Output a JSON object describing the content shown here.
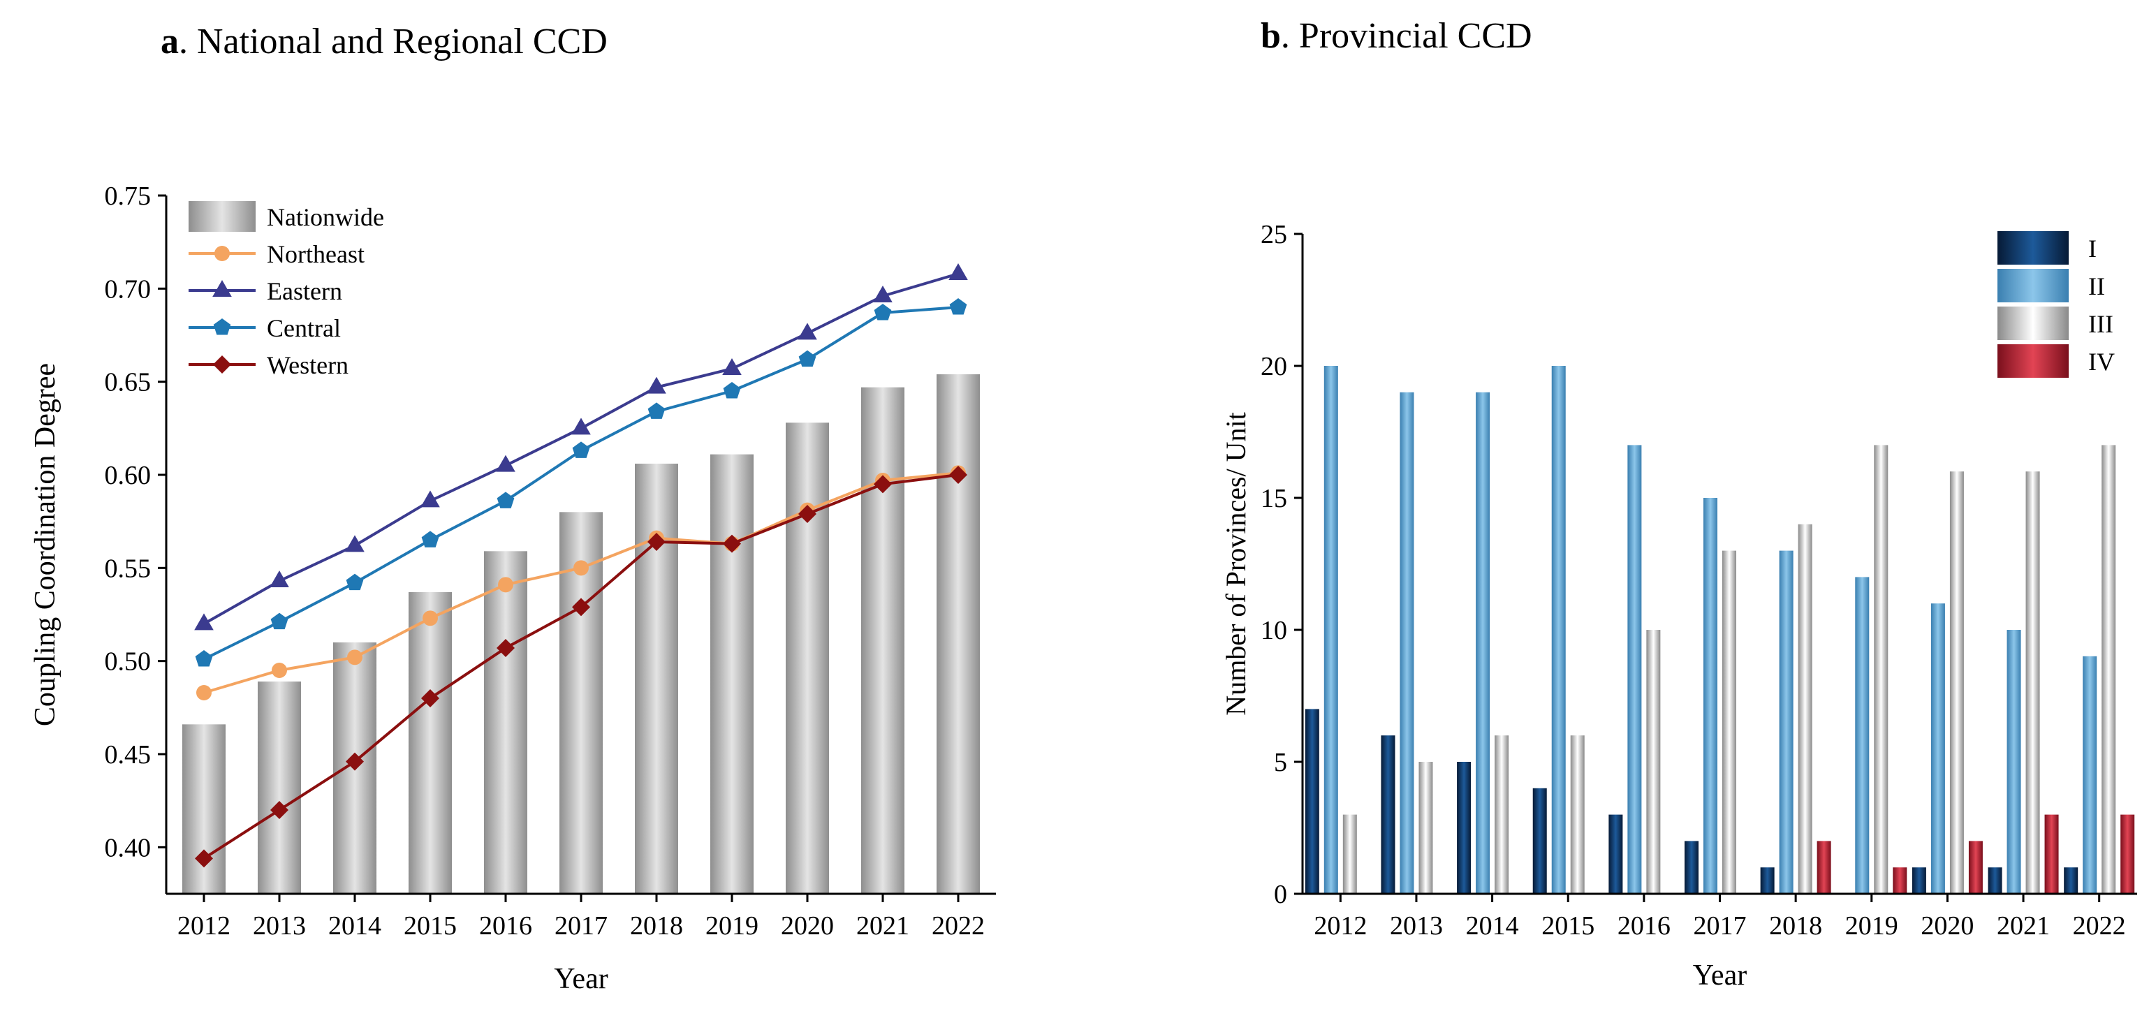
{
  "chart_data": [
    {
      "type": "bar+line",
      "panel_label": "a",
      "title": "National and Regional CCD",
      "xlabel": "Year",
      "ylabel": "Coupling Coordination Degree",
      "ylim": [
        0.375,
        0.75
      ],
      "yticks": [
        "0.40",
        "0.45",
        "0.50",
        "0.55",
        "0.60",
        "0.65",
        "0.70",
        "0.75"
      ],
      "categories": [
        "2012",
        "2013",
        "2014",
        "2015",
        "2016",
        "2017",
        "2018",
        "2019",
        "2020",
        "2021",
        "2022"
      ],
      "legend_position": "top-left",
      "series": [
        {
          "name": "Nationwide",
          "kind": "bar",
          "color": "#b5b5b5",
          "values": [
            0.466,
            0.489,
            0.51,
            0.537,
            0.559,
            0.58,
            0.606,
            0.611,
            0.628,
            0.647,
            0.654
          ]
        },
        {
          "name": "Northeast",
          "kind": "line",
          "marker": "circle",
          "color": "#f4a460",
          "values": [
            0.483,
            0.495,
            0.502,
            0.523,
            0.541,
            0.55,
            0.566,
            0.563,
            0.581,
            0.597,
            0.601
          ]
        },
        {
          "name": "Eastern",
          "kind": "line",
          "marker": "triangle",
          "color": "#3b3b8f",
          "values": [
            0.52,
            0.543,
            0.562,
            0.586,
            0.605,
            0.625,
            0.647,
            0.657,
            0.676,
            0.696,
            0.708
          ]
        },
        {
          "name": "Central",
          "kind": "line",
          "marker": "pentagon",
          "color": "#1f78b4",
          "values": [
            0.501,
            0.521,
            0.542,
            0.565,
            0.586,
            0.613,
            0.634,
            0.645,
            0.662,
            0.687,
            0.69
          ]
        },
        {
          "name": "Western",
          "kind": "line",
          "marker": "diamond",
          "color": "#8b0f0f",
          "values": [
            0.394,
            0.42,
            0.446,
            0.48,
            0.507,
            0.529,
            0.564,
            0.563,
            0.579,
            0.595,
            0.6
          ]
        }
      ]
    },
    {
      "type": "bar",
      "panel_label": "b",
      "title": "Provincial CCD",
      "xlabel": "Year",
      "ylabel": "Number of Provinces/ Unit",
      "ylim": [
        0,
        25
      ],
      "yticks": [
        "0",
        "5",
        "10",
        "15",
        "20",
        "25"
      ],
      "categories": [
        "2012",
        "2013",
        "2014",
        "2015",
        "2016",
        "2017",
        "2018",
        "2019",
        "2020",
        "2021",
        "2022"
      ],
      "legend_position": "top-right",
      "series": [
        {
          "name": "I",
          "color": "#0f3563",
          "values": [
            7,
            6,
            5,
            4,
            3,
            2,
            1,
            0,
            1,
            1,
            1
          ]
        },
        {
          "name": "II",
          "color": "#5fa4cf",
          "values": [
            20,
            19,
            19,
            20,
            17,
            15,
            13,
            12,
            11,
            10,
            9
          ]
        },
        {
          "name": "III",
          "color": "#c9c9c9",
          "values": [
            3,
            5,
            6,
            6,
            10,
            13,
            14,
            17,
            16,
            16,
            17
          ]
        },
        {
          "name": "IV",
          "color": "#a5172a",
          "values": [
            0,
            0,
            0,
            0,
            0,
            0,
            2,
            1,
            2,
            3,
            3
          ]
        }
      ]
    }
  ]
}
